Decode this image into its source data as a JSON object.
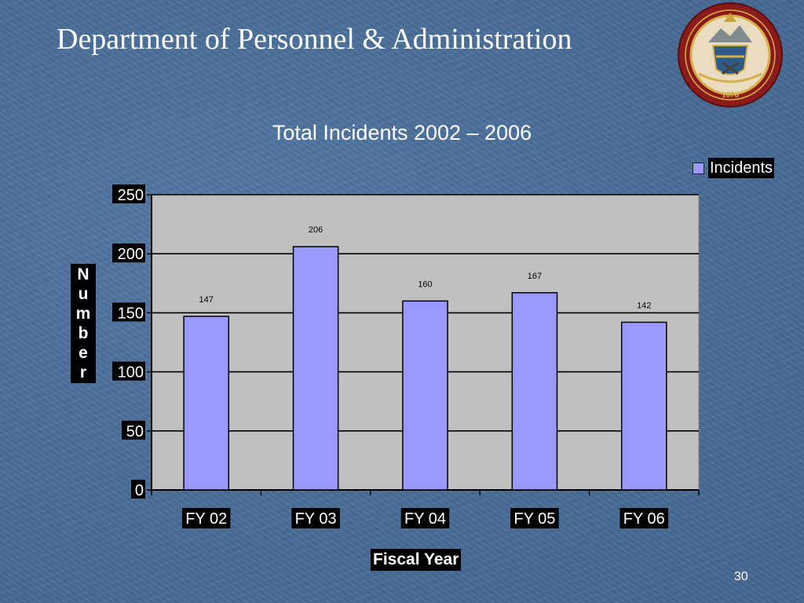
{
  "slide": {
    "title": "Department of Personnel & Administration",
    "page_number": "30"
  },
  "seal": {
    "description_text_top": "STATE OF COLORADO",
    "year": "1876",
    "colors": {
      "ring": "#8b1a1a",
      "gold": "#d8b04a"
    }
  },
  "chart_data": {
    "type": "bar",
    "title": "Total Incidents 2002 – 2006",
    "categories": [
      "FY 02",
      "FY 03",
      "FY 04",
      "FY 05",
      "FY 06"
    ],
    "series": [
      {
        "name": "Incidents",
        "values": [
          147,
          206,
          160,
          167,
          142
        ],
        "color": "#9999ff"
      }
    ],
    "data_labels": [
      "147",
      "206",
      "160",
      "167",
      "142"
    ],
    "xlabel": "Fiscal Year",
    "ylabel": "Number",
    "ylim": [
      0,
      250
    ],
    "yticks": [
      0,
      50,
      100,
      150,
      200,
      250
    ],
    "ytick_labels": [
      "0",
      "50",
      "100",
      "150",
      "200",
      "250"
    ],
    "grid": true,
    "legend": "top-right",
    "plot_background": "#c0c0c0"
  }
}
